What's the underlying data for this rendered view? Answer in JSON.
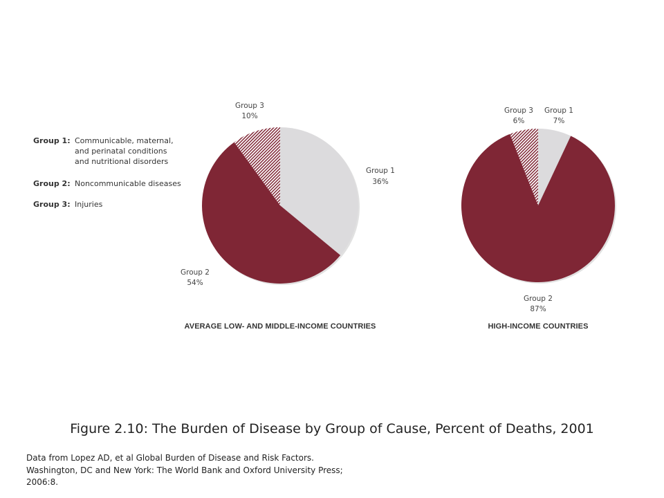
{
  "legend": [
    {
      "key": "Group 1:",
      "lines": [
        "Communicable, maternal,",
        "and perinatal conditions",
        "and nutritional disorders"
      ]
    },
    {
      "key": "Group 2:",
      "lines": [
        "Noncommunicable diseases"
      ]
    },
    {
      "key": "Group 3:",
      "lines": [
        "Injuries"
      ]
    }
  ],
  "colors": {
    "group1": "#dcdbdd",
    "group2": "#7f2635",
    "group3_hatch": "#7f2635",
    "shadow": "#c9c9c9"
  },
  "chart_data": [
    {
      "type": "pie",
      "title": "AVERAGE LOW- AND MIDDLE-INCOME COUNTRIES",
      "slices": [
        {
          "name": "Group 1",
          "value": 36,
          "label": "36%",
          "fill": "solid-light"
        },
        {
          "name": "Group 2",
          "value": 54,
          "label": "54%",
          "fill": "solid-dark"
        },
        {
          "name": "Group 3",
          "value": 10,
          "label": "10%",
          "fill": "hatched"
        }
      ],
      "start": "12-o-clock",
      "direction": "clockwise"
    },
    {
      "type": "pie",
      "title": "HIGH-INCOME COUNTRIES",
      "slices": [
        {
          "name": "Group 1",
          "value": 7,
          "label": "7%",
          "fill": "solid-light"
        },
        {
          "name": "Group 2",
          "value": 87,
          "label": "87%",
          "fill": "solid-dark"
        },
        {
          "name": "Group 3",
          "value": 6,
          "label": "6%",
          "fill": "hatched"
        }
      ],
      "start": "12-o-clock",
      "direction": "clockwise"
    }
  ],
  "caption": "Figure 2.10: The Burden of Disease by Group of Cause, Percent of Deaths, 2001",
  "source_lines": [
    "Data from Lopez AD, et al Global Burden of Disease and Risk Factors.",
    "Washington, DC and New York: The World Bank and Oxford University Press;",
    "2006:8."
  ]
}
